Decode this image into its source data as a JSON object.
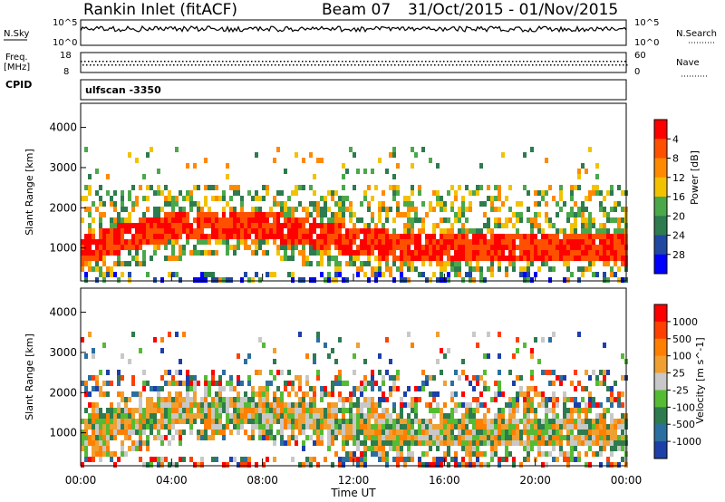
{
  "header": {
    "station": "Rankin Inlet (fitACF)",
    "beam": "Beam 07",
    "date_range": "31/Oct/2015 - 01/Nov/2015"
  },
  "status_panels": {
    "nsky_label": "N.Sky",
    "nsearch_label": "N.Search",
    "freq_label_1": "Freq.",
    "freq_label_2": "[MHz]",
    "nave_label": "Nave",
    "cpid_label": "CPID",
    "cpid_value": "ulfscan -3350",
    "nsky_ticks": [
      "10^5",
      "10^0"
    ],
    "nsearch_ticks": [
      "10^5",
      "10^0"
    ],
    "freq_ticks": [
      "18",
      "8"
    ],
    "nave_ticks": [
      "60",
      "0"
    ]
  },
  "chart_data": [
    {
      "type": "heatmap",
      "ylabel": "Slant Range [km]",
      "ylim": [
        180,
        4600
      ],
      "yticks": [
        "1000",
        "2000",
        "3000",
        "4000"
      ],
      "colorbar_label": "Power [dB]",
      "colorbar_ticks": [
        "4",
        "8",
        "12",
        "16",
        "20",
        "24",
        "28"
      ],
      "colors": [
        "#0000ff",
        "#2048a0",
        "#2d7b4e",
        "#4aa84a",
        "#f2c200",
        "#ff8a00",
        "#ff5000",
        "#ff0000"
      ]
    },
    {
      "type": "heatmap",
      "ylabel": "Velocity [m s-1]",
      "ylim": [
        180,
        4600
      ],
      "yticks": [
        "1000",
        "2000",
        "3000",
        "4000"
      ],
      "colorbar_label": "Velocity [m s^-1]",
      "colorbar_ticks": [
        "1000",
        "500",
        "100",
        "25",
        "-25",
        "-100",
        "-500",
        "-1000"
      ],
      "colors": [
        "#1d3fa8",
        "#2b6fa0",
        "#2d7b4e",
        "#55bb33",
        "#c8c8c8",
        "#f0a030",
        "#ff8000",
        "#ff4000",
        "#ff0000"
      ]
    }
  ],
  "xaxis": {
    "label": "Time UT",
    "ticks": [
      "00:00",
      "04:00",
      "08:00",
      "12:00",
      "16:00",
      "20:00",
      "00:00"
    ]
  }
}
